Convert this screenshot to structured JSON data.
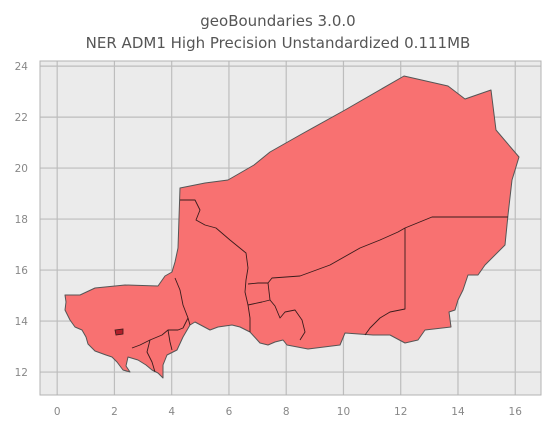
{
  "title": {
    "line1": "geoBoundaries 3.0.0",
    "line2": "NER ADM1 High Precision Unstandardized 0.111MB"
  },
  "map": {
    "country_code": "NER",
    "admin_level": "ADM1",
    "fill_color": "#f87171",
    "edge_color": "#555555",
    "border_color": "#3a1c1c",
    "highlight_color": "#b11f2a",
    "background_color": "#ebebeb",
    "grid_color": "#bdbdbd"
  },
  "axes": {
    "x_ticks": [
      "0",
      "2",
      "4",
      "6",
      "8",
      "10",
      "12",
      "14",
      "16"
    ],
    "y_ticks": [
      "12",
      "14",
      "16",
      "18",
      "20",
      "22",
      "24"
    ],
    "xlim": [
      -0.6,
      16.9
    ],
    "ylim": [
      11.1,
      24.2
    ],
    "grid": true
  }
}
